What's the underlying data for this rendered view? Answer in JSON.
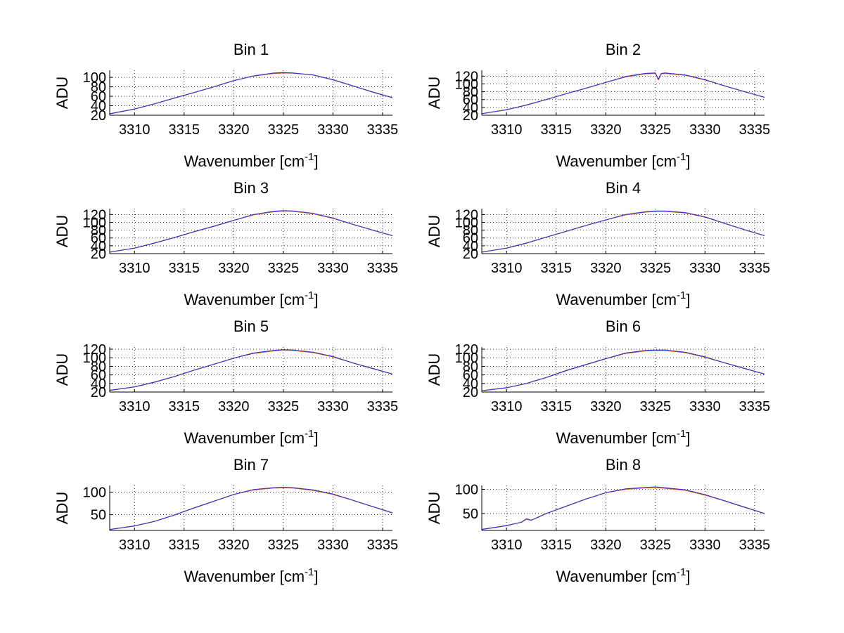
{
  "chart_data": [
    {
      "type": "line",
      "title": "Bin 1",
      "xlabel": "Wavenumber [cm",
      "xlabel_sup": "-1",
      "xlabel_tail": "]",
      "ylabel": "ADU",
      "xlim": [
        3307.5,
        3336
      ],
      "ylim": [
        20,
        115
      ],
      "xticks": [
        "3310",
        "3315",
        "3320",
        "3325",
        "3330",
        "3335"
      ],
      "yticks": [
        "20",
        "40",
        "60",
        "80",
        "100"
      ],
      "grid": true,
      "series": [
        {
          "color": "#ff6600",
          "x": [
            3307.5,
            3310,
            3312,
            3314,
            3316,
            3318,
            3320,
            3322,
            3324,
            3325,
            3326,
            3328,
            3330,
            3332,
            3334,
            3336
          ],
          "y": [
            23,
            33,
            44,
            56,
            68,
            80,
            93,
            103,
            108,
            109,
            109,
            105,
            95,
            82,
            69,
            57
          ]
        },
        {
          "color": "#3333cc",
          "x": [
            3307.5,
            3310,
            3312,
            3314,
            3316,
            3318,
            3320,
            3322,
            3324,
            3325,
            3326,
            3328,
            3330,
            3332,
            3334,
            3336
          ],
          "y": [
            23,
            33,
            44,
            56,
            68,
            80,
            93,
            103,
            109,
            110,
            109,
            105,
            95,
            82,
            69,
            57
          ]
        }
      ]
    },
    {
      "type": "line",
      "title": "Bin 2",
      "xlabel": "Wavenumber [cm",
      "xlabel_sup": "-1",
      "xlabel_tail": "]",
      "ylabel": "ADU",
      "xlim": [
        3307.5,
        3336
      ],
      "ylim": [
        20,
        135
      ],
      "xticks": [
        "3310",
        "3315",
        "3320",
        "3325",
        "3330",
        "3335"
      ],
      "yticks": [
        "20",
        "40",
        "60",
        "80",
        "100",
        "120"
      ],
      "grid": true,
      "series": [
        {
          "color": "#ff6600",
          "x": [
            3307.5,
            3310,
            3312,
            3314,
            3316,
            3318,
            3320,
            3322,
            3324,
            3325,
            3325.3,
            3325.6,
            3326,
            3328,
            3330,
            3332,
            3334,
            3336
          ],
          "y": [
            24,
            34,
            46,
            60,
            75,
            89,
            104,
            118,
            126,
            127,
            110,
            126,
            127,
            122,
            110,
            95,
            80,
            66
          ]
        },
        {
          "color": "#3333cc",
          "x": [
            3307.5,
            3310,
            3312,
            3314,
            3316,
            3318,
            3320,
            3322,
            3324,
            3325,
            3325.3,
            3325.6,
            3326,
            3328,
            3330,
            3332,
            3334,
            3336
          ],
          "y": [
            24,
            34,
            46,
            60,
            75,
            89,
            104,
            119,
            127,
            128,
            112,
            127,
            128,
            123,
            111,
            95,
            80,
            66
          ]
        }
      ]
    },
    {
      "type": "line",
      "title": "Bin 3",
      "xlabel": "Wavenumber [cm",
      "xlabel_sup": "-1",
      "xlabel_tail": "]",
      "ylabel": "ADU",
      "xlim": [
        3307.5,
        3336
      ],
      "ylim": [
        20,
        135
      ],
      "xticks": [
        "3310",
        "3315",
        "3320",
        "3325",
        "3330",
        "3335"
      ],
      "yticks": [
        "20",
        "40",
        "60",
        "80",
        "100",
        "120"
      ],
      "grid": true,
      "series": [
        {
          "color": "#ff6600",
          "x": [
            3307.5,
            3310,
            3312,
            3314,
            3316,
            3318,
            3320,
            3322,
            3324,
            3325,
            3326,
            3328,
            3330,
            3332,
            3334,
            3336
          ],
          "y": [
            24,
            34,
            47,
            61,
            76,
            90,
            105,
            119,
            127,
            129,
            128,
            122,
            110,
            95,
            80,
            66
          ]
        },
        {
          "color": "#3333cc",
          "x": [
            3307.5,
            3310,
            3312,
            3314,
            3316,
            3318,
            3320,
            3322,
            3324,
            3325,
            3326,
            3328,
            3330,
            3332,
            3334,
            3336
          ],
          "y": [
            24,
            34,
            47,
            61,
            76,
            90,
            105,
            120,
            128,
            130,
            129,
            123,
            111,
            95,
            80,
            66
          ]
        }
      ]
    },
    {
      "type": "line",
      "title": "Bin 4",
      "xlabel": "Wavenumber [cm",
      "xlabel_sup": "-1",
      "xlabel_tail": "]",
      "ylabel": "ADU",
      "xlim": [
        3307.5,
        3336
      ],
      "ylim": [
        20,
        135
      ],
      "xticks": [
        "3310",
        "3315",
        "3320",
        "3325",
        "3330",
        "3335"
      ],
      "yticks": [
        "20",
        "40",
        "60",
        "80",
        "100",
        "120"
      ],
      "grid": true,
      "series": [
        {
          "color": "#ff6600",
          "x": [
            3307.5,
            3310,
            3312,
            3314,
            3316,
            3318,
            3320,
            3322,
            3324,
            3325,
            3326,
            3328,
            3330,
            3332,
            3334,
            3336
          ],
          "y": [
            24,
            34,
            47,
            62,
            77,
            92,
            106,
            119,
            126,
            128,
            128,
            124,
            113,
            97,
            81,
            66
          ]
        },
        {
          "color": "#3333cc",
          "x": [
            3307.5,
            3310,
            3312,
            3314,
            3316,
            3318,
            3320,
            3322,
            3324,
            3325,
            3326,
            3328,
            3330,
            3332,
            3334,
            3336
          ],
          "y": [
            24,
            34,
            47,
            62,
            77,
            92,
            106,
            120,
            127,
            129,
            129,
            125,
            114,
            97,
            81,
            66
          ]
        }
      ]
    },
    {
      "type": "line",
      "title": "Bin 5",
      "xlabel": "Wavenumber [cm",
      "xlabel_sup": "-1",
      "xlabel_tail": "]",
      "ylabel": "ADU",
      "xlim": [
        3307.5,
        3336
      ],
      "ylim": [
        20,
        125
      ],
      "xticks": [
        "3310",
        "3315",
        "3320",
        "3325",
        "3330",
        "3335"
      ],
      "yticks": [
        "20",
        "40",
        "60",
        "80",
        "100",
        "120"
      ],
      "grid": true,
      "series": [
        {
          "color": "#ff6600",
          "x": [
            3307.5,
            3310,
            3312,
            3314,
            3316,
            3318,
            3320,
            3322,
            3324,
            3325,
            3326,
            3328,
            3330,
            3332,
            3334,
            3336
          ],
          "y": [
            24,
            32,
            43,
            56,
            71,
            85,
            99,
            110,
            116,
            118,
            117,
            112,
            102,
            88,
            75,
            62
          ]
        },
        {
          "color": "#3333cc",
          "x": [
            3307.5,
            3310,
            3312,
            3314,
            3316,
            3318,
            3320,
            3322,
            3324,
            3325,
            3326,
            3328,
            3330,
            3332,
            3334,
            3336
          ],
          "y": [
            24,
            32,
            43,
            56,
            71,
            85,
            99,
            111,
            117,
            119,
            118,
            113,
            103,
            88,
            75,
            62
          ]
        }
      ]
    },
    {
      "type": "line",
      "title": "Bin 6",
      "xlabel": "Wavenumber [cm",
      "xlabel_sup": "-1",
      "xlabel_tail": "]",
      "ylabel": "ADU",
      "xlim": [
        3307.5,
        3336
      ],
      "ylim": [
        20,
        125
      ],
      "xticks": [
        "3310",
        "3315",
        "3320",
        "3325",
        "3330",
        "3335"
      ],
      "yticks": [
        "20",
        "40",
        "60",
        "80",
        "100",
        "120"
      ],
      "grid": true,
      "series": [
        {
          "color": "#ff6600",
          "x": [
            3307.5,
            3310,
            3312,
            3314,
            3316,
            3318,
            3320,
            3322,
            3324,
            3325,
            3326,
            3328,
            3330,
            3332,
            3334,
            3336
          ],
          "y": [
            23,
            30,
            40,
            54,
            70,
            84,
            98,
            110,
            116,
            117,
            117,
            112,
            101,
            88,
            75,
            62
          ]
        },
        {
          "color": "#3333cc",
          "x": [
            3307.5,
            3310,
            3312,
            3314,
            3316,
            3318,
            3320,
            3322,
            3324,
            3325,
            3326,
            3328,
            3330,
            3332,
            3334,
            3336
          ],
          "y": [
            23,
            30,
            40,
            54,
            70,
            84,
            98,
            111,
            117,
            118,
            118,
            113,
            102,
            88,
            75,
            62
          ]
        }
      ]
    },
    {
      "type": "line",
      "title": "Bin 7",
      "xlabel": "Wavenumber [cm",
      "xlabel_sup": "-1",
      "xlabel_tail": "]",
      "ylabel": "ADU",
      "xlim": [
        3307.5,
        3336
      ],
      "ylim": [
        15,
        115
      ],
      "xticks": [
        "3310",
        "3315",
        "3320",
        "3325",
        "3330",
        "3335"
      ],
      "yticks": [
        "50",
        "100"
      ],
      "grid": true,
      "series": [
        {
          "color": "#ff6600",
          "x": [
            3307.5,
            3310,
            3312,
            3314,
            3316,
            3318,
            3320,
            3322,
            3324,
            3325,
            3326,
            3328,
            3330,
            3332,
            3334,
            3336
          ],
          "y": [
            17,
            25,
            35,
            49,
            65,
            80,
            95,
            105,
            109,
            110,
            109,
            104,
            95,
            82,
            68,
            54
          ]
        },
        {
          "color": "#3333cc",
          "x": [
            3307.5,
            3310,
            3312,
            3314,
            3316,
            3318,
            3320,
            3322,
            3324,
            3325,
            3326,
            3328,
            3330,
            3332,
            3334,
            3336
          ],
          "y": [
            17,
            25,
            35,
            49,
            65,
            80,
            95,
            106,
            110,
            111,
            110,
            105,
            96,
            82,
            68,
            54
          ]
        }
      ]
    },
    {
      "type": "line",
      "title": "Bin 8",
      "xlabel": "Wavenumber [cm",
      "xlabel_sup": "-1",
      "xlabel_tail": "]",
      "ylabel": "ADU",
      "xlim": [
        3307.5,
        3336
      ],
      "ylim": [
        15,
        108
      ],
      "xticks": [
        "3310",
        "3315",
        "3320",
        "3325",
        "3330",
        "3335"
      ],
      "yticks": [
        "50",
        "100"
      ],
      "grid": true,
      "series": [
        {
          "color": "#ff6600",
          "x": [
            3307.5,
            3310,
            3311.5,
            3312,
            3312.5,
            3314,
            3316,
            3318,
            3320,
            3322,
            3324,
            3325,
            3326,
            3328,
            3330,
            3332,
            3334,
            3336
          ],
          "y": [
            17,
            25,
            32,
            38,
            36,
            50,
            65,
            80,
            93,
            100,
            103,
            104,
            102,
            98,
            88,
            76,
            63,
            50
          ]
        },
        {
          "color": "#3333cc",
          "x": [
            3307.5,
            3310,
            3311.5,
            3312,
            3312.5,
            3314,
            3316,
            3318,
            3320,
            3322,
            3324,
            3325,
            3326,
            3328,
            3330,
            3332,
            3334,
            3336
          ],
          "y": [
            17,
            25,
            32,
            39,
            36,
            50,
            65,
            80,
            93,
            101,
            104,
            105,
            103,
            99,
            89,
            76,
            63,
            50
          ]
        }
      ]
    }
  ]
}
